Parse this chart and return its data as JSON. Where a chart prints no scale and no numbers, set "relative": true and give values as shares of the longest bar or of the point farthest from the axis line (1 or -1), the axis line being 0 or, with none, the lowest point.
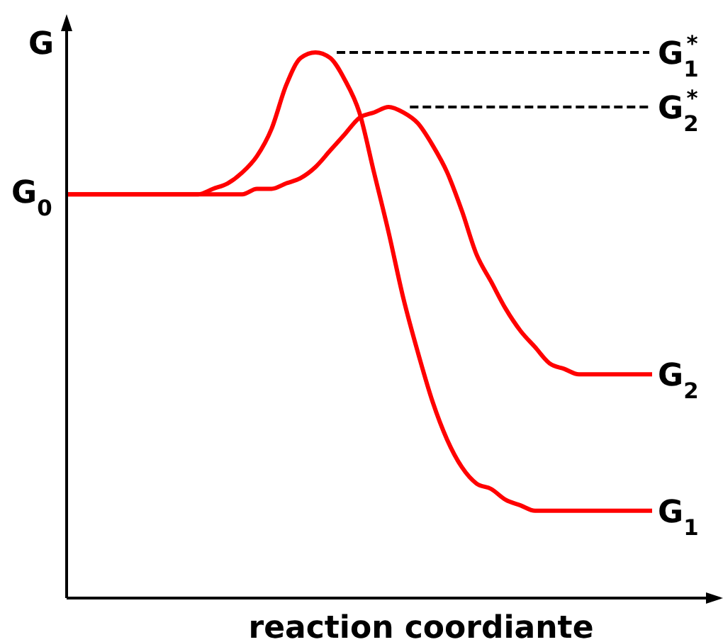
{
  "chart_data": {
    "type": "line",
    "relative": true,
    "ylabel": "G",
    "xlabel": "reaction coordiante",
    "categories": [
      null,
      null,
      null,
      null,
      null,
      null,
      null,
      null,
      null,
      null,
      null,
      null,
      null,
      null,
      null,
      null,
      null,
      null,
      null,
      null,
      null,
      null,
      null,
      null,
      null,
      null,
      null,
      null,
      null,
      null,
      null,
      null,
      null,
      null,
      null,
      null,
      null,
      null,
      null,
      null,
      null
    ],
    "series": [
      {
        "name": "G$_{1}$",
        "color": "#ff0000",
        "values": [
          0.74,
          0.74,
          0.74,
          0.74,
          0.74,
          0.74,
          0.74,
          0.74,
          0.74,
          0.74,
          0.75,
          0.76,
          0.78,
          0.81,
          0.86,
          0.94,
          0.99,
          1,
          0.99,
          0.95,
          0.89,
          0.78,
          0.67,
          0.55,
          0.45,
          0.36,
          0.29,
          0.24,
          0.21,
          0.2,
          0.18,
          0.17,
          0.16,
          0.16,
          0.16,
          0.16,
          0.16,
          0.16,
          0.16,
          0.16,
          0.16
        ]
      },
      {
        "name": "G$_{2}$",
        "color": "#ff0000",
        "values": [
          0.74,
          0.74,
          0.74,
          0.74,
          0.74,
          0.74,
          0.74,
          0.74,
          0.74,
          0.74,
          0.74,
          0.74,
          0.74,
          0.75,
          0.75,
          0.76,
          0.77,
          0.79,
          0.82,
          0.85,
          0.88,
          0.89,
          0.9,
          0.89,
          0.87,
          0.83,
          0.78,
          0.71,
          0.63,
          0.58,
          0.53,
          0.49,
          0.46,
          0.43,
          0.42,
          0.41,
          0.41,
          0.41,
          0.41,
          0.41,
          0.41
        ]
      }
    ],
    "ref_lines": [
      {
        "axis": "y",
        "value": 1,
        "label": "G$_{1}$$^{*}$",
        "color": "#000000",
        "line_style": "dashed"
      },
      {
        "axis": "y",
        "value": 0.9,
        "label": "G$_{2}$$^{*}$",
        "color": "#000000",
        "line_style": "dashed"
      }
    ],
    "annotations": [
      "G$_{0}$"
    ],
    "marker": "none",
    "line_style": "solid"
  }
}
